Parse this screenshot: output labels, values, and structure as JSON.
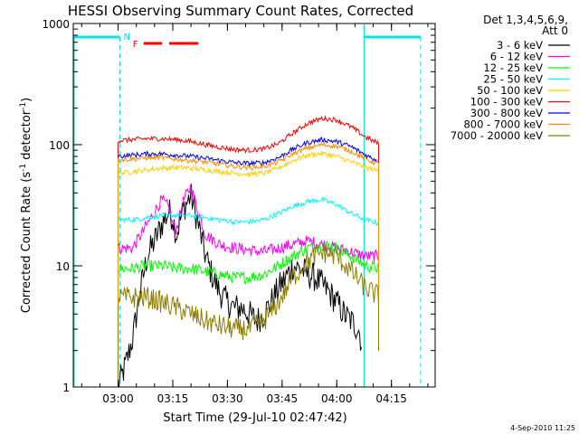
{
  "chart_data": {
    "type": "line",
    "title": "HESSI Observing Summary Count Rates, Corrected",
    "xlabel": "Start Time (29-Jul-10 02:47:42)",
    "ylabel_main": "Corrected Count Rate (s",
    "ylabel_sup1": "-1",
    "ylabel_mid": " detector",
    "ylabel_sup2": "-1",
    "ylabel_end": ")",
    "yscale": "log",
    "ylim": [
      1,
      1000
    ],
    "xlim": [
      "02:47:42",
      "04:27:00"
    ],
    "x_ticks": [
      "03:00",
      "03:15",
      "03:30",
      "03:45",
      "04:00",
      "04:15"
    ],
    "y_ticks": [
      "1",
      "10",
      "100",
      "1000"
    ],
    "legend": {
      "header1": "Det 1,3,4,5,6,9,",
      "header2": "Att 0",
      "placement": "top-right outside"
    },
    "flags": {
      "N_label": "N",
      "F_label": "F",
      "night": [
        [
          "02:47:42",
          "03:00:30"
        ],
        [
          "04:07:30",
          "04:23:00"
        ]
      ],
      "flare": [
        [
          "03:07:00",
          "03:12:00"
        ],
        [
          "03:14:00",
          "03:22:00"
        ]
      ],
      "saa_dashed_lines": [
        "03:00:30",
        "04:23:00"
      ],
      "eclipse_solid_line": "04:07:30"
    },
    "series": [
      {
        "name": "3 - 6 keV",
        "color": "#000000",
        "x": [
          "03:00",
          "03:02",
          "03:04",
          "03:06",
          "03:08",
          "03:10",
          "03:12",
          "03:14",
          "03:15",
          "03:16",
          "03:18",
          "03:20",
          "03:22",
          "03:24",
          "03:26",
          "03:28",
          "03:30",
          "03:32",
          "03:34",
          "03:36",
          "03:38",
          "03:40",
          "03:42",
          "03:44",
          "03:46",
          "03:48",
          "03:50",
          "03:52",
          "03:54",
          "03:56",
          "03:58",
          "04:00",
          "04:02",
          "04:04",
          "04:06",
          "04:07"
        ],
        "values": [
          1.0,
          1.5,
          2.5,
          6,
          12,
          16,
          22,
          28,
          25,
          18,
          30,
          38,
          22,
          12,
          8,
          6,
          5,
          4.5,
          4.5,
          4,
          3.5,
          4,
          5,
          6.5,
          8,
          10,
          9.5,
          8.5,
          8,
          7,
          6,
          5,
          4,
          3.5,
          3,
          2.2
        ]
      },
      {
        "name": "6 - 12 keV",
        "color": "#ff00ff",
        "x": [
          "03:00",
          "03:04",
          "03:08",
          "03:10",
          "03:12",
          "03:14",
          "03:15",
          "03:16",
          "03:18",
          "03:20",
          "03:22",
          "03:24",
          "03:28",
          "03:32",
          "03:36",
          "03:40",
          "03:44",
          "03:48",
          "03:52",
          "03:56",
          "04:00",
          "04:04",
          "04:08",
          "04:12"
        ],
        "values": [
          14,
          14,
          22,
          28,
          35,
          30,
          22,
          20,
          35,
          45,
          28,
          18,
          15,
          14,
          13.5,
          13,
          14,
          15,
          16,
          15,
          14,
          13,
          12,
          12
        ]
      },
      {
        "name": "12 - 25 keV",
        "color": "#00ff00",
        "x": [
          "03:00",
          "03:04",
          "03:08",
          "03:12",
          "03:16",
          "03:20",
          "03:24",
          "03:28",
          "03:32",
          "03:36",
          "03:40",
          "03:44",
          "03:48",
          "03:52",
          "03:56",
          "04:00",
          "04:04",
          "04:08",
          "04:12"
        ],
        "values": [
          9.5,
          9.5,
          10,
          10,
          9.5,
          9.5,
          9,
          8.5,
          8,
          8,
          8.5,
          10,
          12,
          14,
          15,
          14,
          12,
          10,
          9.5
        ]
      },
      {
        "name": "25 - 50 keV",
        "color": "#00ffff",
        "x": [
          "03:00",
          "03:04",
          "03:08",
          "03:12",
          "03:16",
          "03:20",
          "03:24",
          "03:28",
          "03:32",
          "03:36",
          "03:40",
          "03:44",
          "03:48",
          "03:52",
          "03:56",
          "04:00",
          "04:04",
          "04:08",
          "04:12"
        ],
        "values": [
          24,
          24,
          25,
          26,
          26,
          26,
          25,
          24,
          23,
          23,
          24,
          27,
          31,
          34,
          35,
          32,
          27,
          24,
          22
        ]
      },
      {
        "name": "50 - 100 keV",
        "color": "#ffd000",
        "x": [
          "03:00",
          "03:04",
          "03:08",
          "03:12",
          "03:16",
          "03:20",
          "03:24",
          "03:28",
          "03:32",
          "03:36",
          "03:40",
          "03:44",
          "03:48",
          "03:52",
          "03:56",
          "04:00",
          "04:04",
          "04:08",
          "04:12"
        ],
        "values": [
          58,
          60,
          62,
          64,
          65,
          64,
          62,
          60,
          58,
          57,
          58,
          64,
          74,
          82,
          85,
          80,
          72,
          65,
          60
        ]
      },
      {
        "name": "100 - 300 keV",
        "color": "#ff0000",
        "x": [
          "03:00",
          "03:04",
          "03:08",
          "03:12",
          "03:16",
          "03:20",
          "03:24",
          "03:28",
          "03:32",
          "03:36",
          "03:40",
          "03:44",
          "03:48",
          "03:52",
          "03:56",
          "04:00",
          "04:04",
          "04:08",
          "04:12"
        ],
        "values": [
          108,
          110,
          112,
          112,
          110,
          106,
          100,
          95,
          91,
          90,
          92,
          102,
          125,
          150,
          165,
          160,
          140,
          115,
          100
        ]
      },
      {
        "name": "300 - 800 keV",
        "color": "#0000ff",
        "x": [
          "03:00",
          "03:04",
          "03:08",
          "03:12",
          "03:16",
          "03:20",
          "03:24",
          "03:28",
          "03:32",
          "03:36",
          "03:40",
          "03:44",
          "03:48",
          "03:52",
          "03:56",
          "04:00",
          "04:04",
          "04:08",
          "04:12"
        ],
        "values": [
          80,
          82,
          84,
          84,
          82,
          80,
          77,
          74,
          71,
          70,
          71,
          78,
          92,
          104,
          110,
          106,
          96,
          82,
          72
        ]
      },
      {
        "name": "800 - 7000 keV",
        "color": "#ff8c00",
        "x": [
          "03:00",
          "03:04",
          "03:08",
          "03:12",
          "03:16",
          "03:20",
          "03:24",
          "03:28",
          "03:32",
          "03:36",
          "03:40",
          "03:44",
          "03:48",
          "03:52",
          "03:56",
          "04:00",
          "04:04",
          "04:08",
          "04:12"
        ],
        "values": [
          75,
          76,
          78,
          78,
          76,
          74,
          72,
          69,
          66,
          65,
          66,
          72,
          84,
          94,
          100,
          97,
          88,
          76,
          68
        ]
      },
      {
        "name": "7000 - 20000 keV",
        "color": "#8b7d00",
        "x": [
          "03:00",
          "03:04",
          "03:08",
          "03:12",
          "03:16",
          "03:20",
          "03:24",
          "03:28",
          "03:32",
          "03:36",
          "03:40",
          "03:44",
          "03:48",
          "03:52",
          "03:56",
          "04:00",
          "04:04",
          "04:08",
          "04:12"
        ],
        "values": [
          5.5,
          5.5,
          5.5,
          5,
          4.5,
          4,
          3.5,
          3.2,
          3,
          3,
          3.5,
          5,
          8,
          11,
          13,
          12,
          9,
          6.5,
          5.5
        ]
      }
    ]
  },
  "footer": {
    "timestamp": "4-Sep-2010 11:25"
  }
}
